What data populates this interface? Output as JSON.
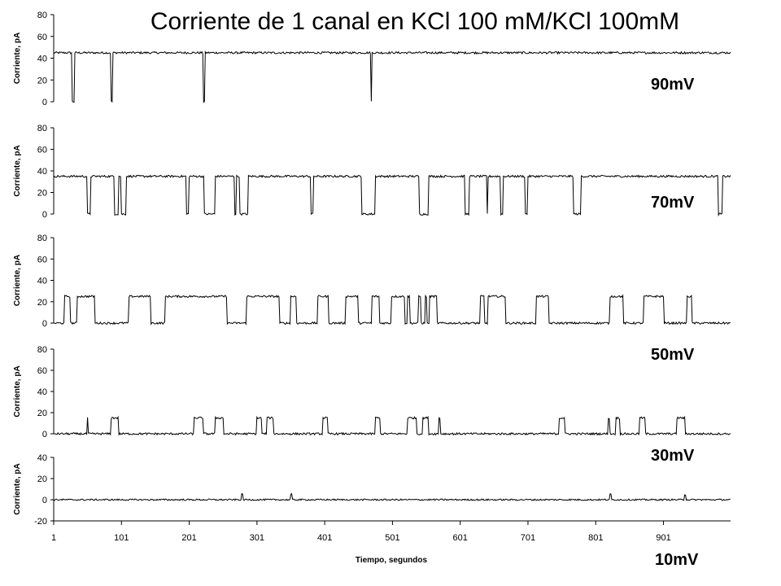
{
  "chart_data": {
    "type": "line",
    "title": "Corriente de 1 canal en KCl 100 mM/KCl 100mM",
    "xlabel": "Tiempo, segundos",
    "x_ticks": [
      "1",
      "101",
      "201",
      "301",
      "401",
      "501",
      "601",
      "701",
      "801",
      "901"
    ],
    "xlim": [
      1,
      1000
    ],
    "panels": [
      {
        "label": "90mV",
        "ylabel": "Corriente, pA",
        "ylim": [
          0,
          80
        ],
        "y_ticks": [
          "0",
          "20",
          "40",
          "60",
          "80"
        ],
        "open_level": 45,
        "closed_level": 0,
        "closed_intervals": [
          [
            28,
            32
          ],
          [
            86,
            88
          ],
          [
            222,
            224
          ],
          [
            469,
            470
          ]
        ]
      },
      {
        "label": "70mV",
        "ylabel": "Corriente, pA",
        "ylim": [
          0,
          80
        ],
        "y_ticks": [
          "0",
          "20",
          "40",
          "60",
          "80"
        ],
        "open_level": 35,
        "closed_level": 0,
        "closed_intervals": [
          [
            50,
            55
          ],
          [
            90,
            97
          ],
          [
            100,
            108
          ],
          [
            197,
            200
          ],
          [
            223,
            239
          ],
          [
            268,
            270
          ],
          [
            276,
            288
          ],
          [
            381,
            384
          ],
          [
            456,
            475
          ],
          [
            540,
            554
          ],
          [
            608,
            614
          ],
          [
            640,
            642
          ],
          [
            661,
            664
          ],
          [
            697,
            700
          ],
          [
            768,
            779
          ],
          [
            982,
            988
          ]
        ]
      },
      {
        "label": "50mV",
        "ylabel": "Corriente, pA",
        "ylim": [
          0,
          80
        ],
        "y_ticks": [
          "0",
          "20",
          "40",
          "60",
          "80"
        ],
        "open_level": 25,
        "closed_level": 0,
        "open_intervals": [
          [
            17,
            25
          ],
          [
            36,
            62
          ],
          [
            112,
            144
          ],
          [
            166,
            256
          ],
          [
            286,
            334
          ],
          [
            350,
            359
          ],
          [
            391,
            407
          ],
          [
            432,
            450
          ],
          [
            470,
            482
          ],
          [
            499,
            519
          ],
          [
            523,
            527
          ],
          [
            539,
            543
          ],
          [
            549,
            551
          ],
          [
            555,
            567
          ],
          [
            631,
            637
          ],
          [
            642,
            668
          ],
          [
            713,
            732
          ],
          [
            822,
            841
          ],
          [
            872,
            901
          ],
          [
            935,
            943
          ]
        ]
      },
      {
        "label": "30mV",
        "ylabel": "Corriente, pA",
        "ylim": [
          0,
          80
        ],
        "y_ticks": [
          "0",
          "20",
          "40",
          "60",
          "80"
        ],
        "open_level": 15,
        "closed_level": 0,
        "open_intervals": [
          [
            50,
            52
          ],
          [
            86,
            97
          ],
          [
            208,
            221
          ],
          [
            239,
            252
          ],
          [
            300,
            308
          ],
          [
            315,
            325
          ],
          [
            398,
            405
          ],
          [
            476,
            483
          ],
          [
            523,
            537
          ],
          [
            546,
            554
          ],
          [
            569,
            571
          ],
          [
            747,
            755
          ],
          [
            819,
            821
          ],
          [
            830,
            836
          ],
          [
            866,
            874
          ],
          [
            921,
            933
          ]
        ]
      },
      {
        "label": "10mV",
        "ylabel": "Corriente, pA",
        "ylim": [
          -20,
          40
        ],
        "y_ticks": [
          "-20",
          "0",
          "20",
          "40"
        ],
        "open_level": 5,
        "closed_level": 0,
        "open_intervals": [
          [
            278,
            280
          ],
          [
            351,
            353
          ],
          [
            822,
            824
          ],
          [
            932,
            934
          ]
        ]
      }
    ],
    "colors": {
      "trace": "#000000",
      "background": "#ffffff"
    },
    "grid": false,
    "legend": "none"
  }
}
